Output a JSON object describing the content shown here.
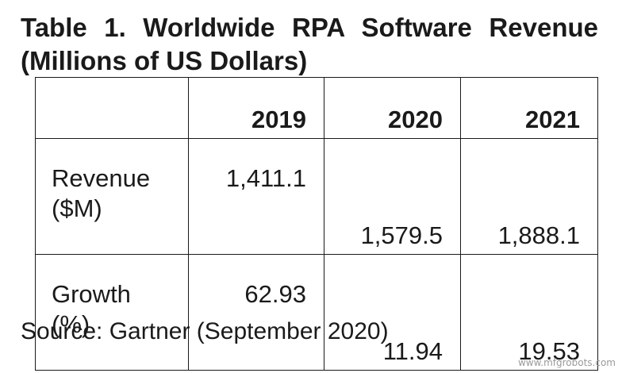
{
  "title": "Table 1. Worldwide RPA Software Revenue (Millions of US Dollars)",
  "table": {
    "header": [
      "",
      "2019",
      "2020",
      "2021"
    ],
    "rows": [
      {
        "label_line1": "Revenue",
        "label_line2": "($M)",
        "values": [
          "1,411.1",
          "1,579.5",
          "1,888.1"
        ]
      },
      {
        "label_line1": "Growth",
        "label_line2": "(%)",
        "values": [
          "62.93",
          "11.94",
          "19.53"
        ]
      }
    ]
  },
  "source": "Source: Gartner (September 2020)",
  "watermark": "www.mfgrobots.com"
}
